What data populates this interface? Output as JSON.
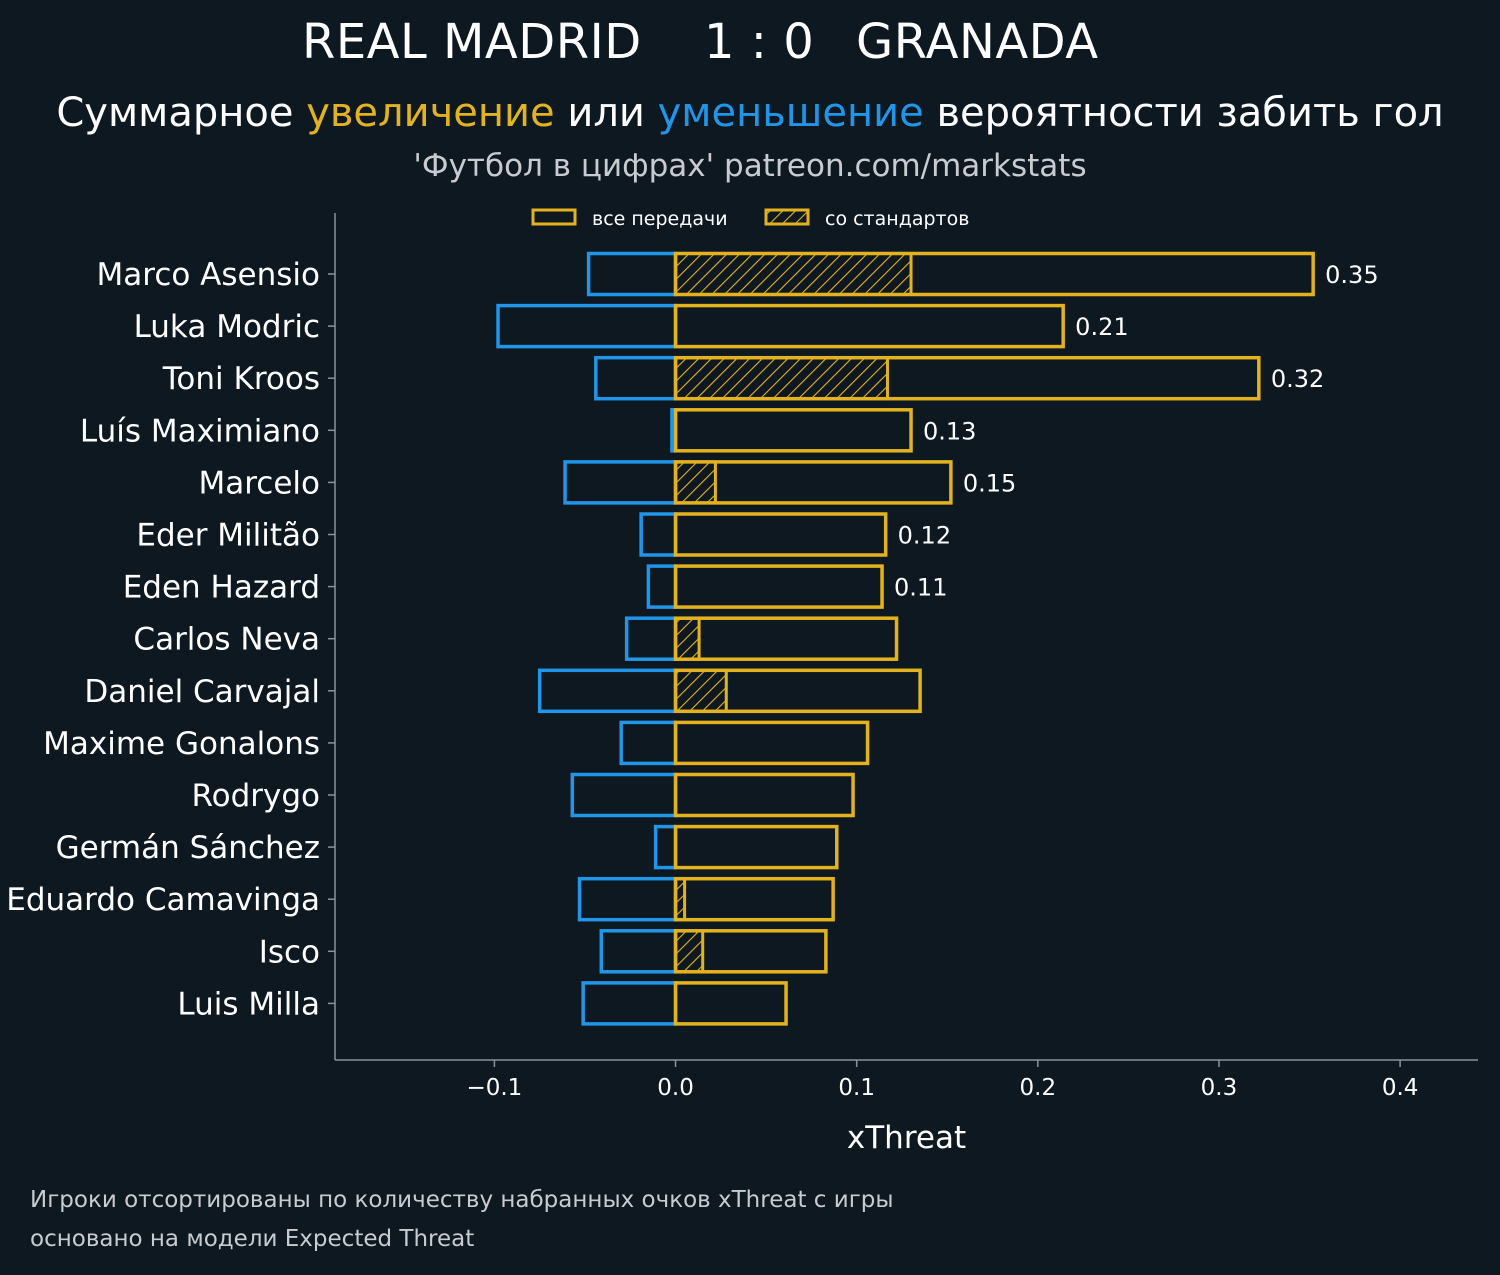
{
  "header": {
    "home_team": "REAL MADRID",
    "score": "1 : 0",
    "away_team": "GRANADA",
    "subtitle_part1": "Суммарное ",
    "subtitle_increase": "увеличение",
    "subtitle_part2": " или ",
    "subtitle_decrease": "уменьшение",
    "subtitle_part3": " вероятности забить гол",
    "credit": "'Футбол в цифрах' patreon.com/markstats"
  },
  "footnote": {
    "line1": "Игроки отсортированы по количеству набранных очков xThreat с игры",
    "line2": "основано на модели Expected Threat"
  },
  "colors": {
    "background": "#0e1821",
    "increase": "#e3b31f",
    "decrease": "#2196e8",
    "axis": "#8a939b",
    "text": "#ffffff"
  },
  "chart_data": {
    "type": "bar",
    "orientation": "horizontal",
    "xlabel": "xThreat",
    "xlim": [
      -0.188,
      0.443
    ],
    "xticks": [
      -0.1,
      0.0,
      0.1,
      0.2,
      0.3,
      0.4
    ],
    "xtick_labels": [
      "−0.1",
      "0.0",
      "0.1",
      "0.2",
      "0.3",
      "0.4"
    ],
    "legend": {
      "placement": "top",
      "all_passes": "все передачи",
      "set_pieces": "со стандартов"
    },
    "categories": [
      "Marco Asensio",
      "Luka Modric",
      "Toni Kroos",
      "Luís Maximiano",
      "Marcelo",
      "Eder Militão",
      "Eden Hazard",
      "Carlos Neva",
      "Daniel Carvajal",
      "Maxime Gonalons",
      "Rodrygo",
      "Germán Sánchez",
      "Eduardo Camavinga",
      "Isco",
      "Luis Milla"
    ],
    "series": [
      {
        "name": "increase_all_passes",
        "values": [
          0.352,
          0.214,
          0.322,
          0.13,
          0.152,
          0.116,
          0.114,
          0.122,
          0.135,
          0.106,
          0.098,
          0.089,
          0.087,
          0.083,
          0.061
        ]
      },
      {
        "name": "increase_set_pieces",
        "values": [
          0.13,
          0.0,
          0.117,
          0.0,
          0.022,
          0.0,
          0.0,
          0.013,
          0.028,
          0.0,
          0.0,
          0.0,
          0.005,
          0.015,
          0.0
        ]
      },
      {
        "name": "decrease",
        "values": [
          -0.048,
          -0.098,
          -0.044,
          -0.002,
          -0.061,
          -0.019,
          -0.015,
          -0.027,
          -0.075,
          -0.03,
          -0.057,
          -0.011,
          -0.053,
          -0.041,
          -0.051
        ]
      }
    ],
    "value_labels": [
      "0.35",
      "0.21",
      "0.32",
      "0.13",
      "0.15",
      "0.12",
      "0.11",
      "",
      "",
      "",
      "",
      "",
      "",
      "",
      ""
    ]
  }
}
